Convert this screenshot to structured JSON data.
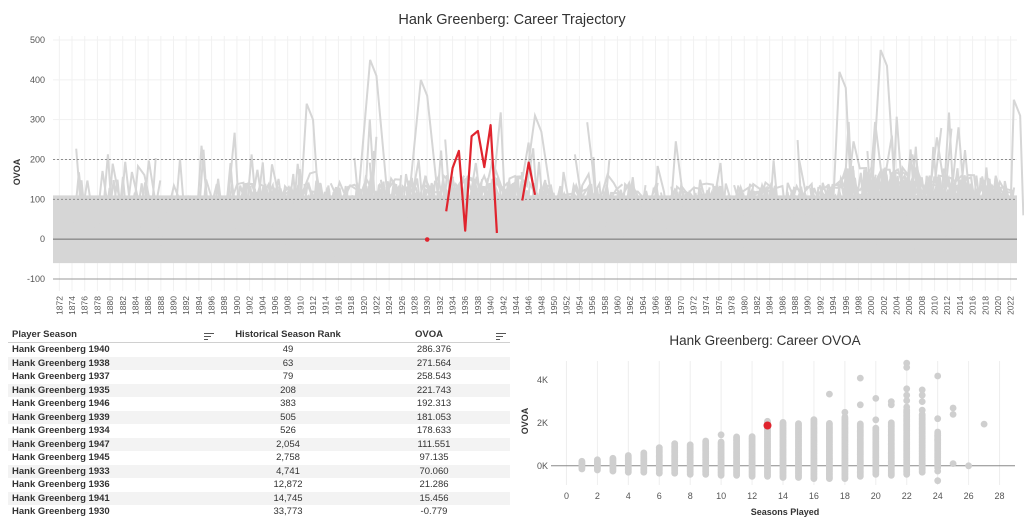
{
  "top_chart": {
    "title": "Hank Greenberg: Career Trajectory"
  },
  "scatter_chart": {
    "title": "Hank Greenberg: Career OVOA"
  },
  "table": {
    "headers": [
      "Player Season",
      "Historical Season Rank",
      "OVOA"
    ],
    "rows": [
      [
        "Hank Greenberg 1940",
        "49",
        "286.376"
      ],
      [
        "Hank Greenberg 1938",
        "63",
        "271.564"
      ],
      [
        "Hank Greenberg 1937",
        "79",
        "258.543"
      ],
      [
        "Hank Greenberg 1935",
        "208",
        "221.743"
      ],
      [
        "Hank Greenberg 1946",
        "383",
        "192.313"
      ],
      [
        "Hank Greenberg 1939",
        "505",
        "181.053"
      ],
      [
        "Hank Greenberg 1934",
        "526",
        "178.633"
      ],
      [
        "Hank Greenberg 1947",
        "2,054",
        "111.551"
      ],
      [
        "Hank Greenberg 1945",
        "2,758",
        "97.135"
      ],
      [
        "Hank Greenberg 1933",
        "4,741",
        "70.060"
      ],
      [
        "Hank Greenberg 1936",
        "12,872",
        "21.286"
      ],
      [
        "Hank Greenberg 1941",
        "14,745",
        "15.456"
      ],
      [
        "Hank Greenberg 1930",
        "33,773",
        "-0.779"
      ]
    ]
  },
  "colors": {
    "highlight": "#e0242e",
    "background_lines": "#d6d6d6",
    "background_points": "#cfcfcf",
    "zero_line": "#8a8a8a"
  },
  "chart_data": [
    {
      "type": "line",
      "title": "Hank Greenberg: Career Trajectory",
      "xlabel": "",
      "ylabel": "OVOA",
      "xlim": [
        1871,
        2023
      ],
      "ylim": [
        -130,
        510
      ],
      "yticks": [
        -100,
        0,
        100,
        200,
        300,
        400,
        500
      ],
      "xticks": [
        1872,
        1874,
        1876,
        1878,
        1880,
        1882,
        1884,
        1886,
        1888,
        1890,
        1892,
        1894,
        1896,
        1898,
        1900,
        1902,
        1904,
        1906,
        1908,
        1910,
        1912,
        1914,
        1916,
        1918,
        1920,
        1922,
        1924,
        1926,
        1928,
        1930,
        1932,
        1934,
        1936,
        1938,
        1940,
        1942,
        1944,
        1946,
        1948,
        1950,
        1952,
        1954,
        1956,
        1958,
        1960,
        1962,
        1964,
        1966,
        1968,
        1970,
        1972,
        1974,
        1976,
        1978,
        1980,
        1982,
        1984,
        1986,
        1988,
        1990,
        1992,
        1994,
        1996,
        1998,
        2000,
        2002,
        2004,
        2006,
        2008,
        2010,
        2012,
        2014,
        2016,
        2018,
        2020,
        2022
      ],
      "reference_lines": [
        -100,
        0,
        100,
        200
      ],
      "background": "all other player careers (grey)",
      "series": [
        {
          "name": "Hank Greenberg",
          "segments": [
            [
              {
                "x": 1930,
                "y": -0.779
              }
            ],
            [
              {
                "x": 1933,
                "y": 70.06
              },
              {
                "x": 1934,
                "y": 178.633
              },
              {
                "x": 1935,
                "y": 221.743
              },
              {
                "x": 1936,
                "y": 21.286
              },
              {
                "x": 1937,
                "y": 258.543
              },
              {
                "x": 1938,
                "y": 271.564
              },
              {
                "x": 1939,
                "y": 181.053
              },
              {
                "x": 1940,
                "y": 286.376
              },
              {
                "x": 1941,
                "y": 15.456
              }
            ],
            [
              {
                "x": 1945,
                "y": 97.135
              },
              {
                "x": 1946,
                "y": 192.313
              },
              {
                "x": 1947,
                "y": 111.551
              }
            ]
          ]
        }
      ]
    },
    {
      "type": "scatter",
      "title": "Hank Greenberg: Career OVOA",
      "xlabel": "Seasons Played",
      "ylabel": "OVOA",
      "xlim": [
        -1,
        29
      ],
      "ylim": [
        -900,
        4900
      ],
      "xticks": [
        0,
        2,
        4,
        6,
        8,
        10,
        12,
        14,
        16,
        18,
        20,
        22,
        24,
        26,
        28
      ],
      "yticks": [
        0,
        2000,
        4000
      ],
      "ytick_labels": [
        "0K",
        "2K",
        "4K"
      ],
      "highlight": {
        "name": "Hank Greenberg",
        "x": 13,
        "y": 1884
      },
      "columns": [
        {
          "x": 1,
          "min": -150,
          "max": 250
        },
        {
          "x": 2,
          "min": -200,
          "max": 300
        },
        {
          "x": 3,
          "min": -250,
          "max": 400
        },
        {
          "x": 4,
          "min": -300,
          "max": 500
        },
        {
          "x": 5,
          "min": -300,
          "max": 600
        },
        {
          "x": 6,
          "min": -350,
          "max": 850
        },
        {
          "x": 7,
          "min": -350,
          "max": 1050
        },
        {
          "x": 8,
          "min": -400,
          "max": 1000
        },
        {
          "x": 9,
          "min": -400,
          "max": 1200
        },
        {
          "x": 10,
          "min": -450,
          "max": 1150
        },
        {
          "x": 11,
          "min": -450,
          "max": 1300
        },
        {
          "x": 12,
          "min": -500,
          "max": 1400
        },
        {
          "x": 13,
          "min": -500,
          "max": 2100
        },
        {
          "x": 14,
          "min": -550,
          "max": 2050
        },
        {
          "x": 15,
          "min": -550,
          "max": 2000
        },
        {
          "x": 16,
          "min": -600,
          "max": 2200
        },
        {
          "x": 17,
          "min": -600,
          "max": 2000
        },
        {
          "x": 18,
          "min": -600,
          "max": 2300
        },
        {
          "x": 19,
          "min": -500,
          "max": 2000
        },
        {
          "x": 20,
          "min": -400,
          "max": 1800
        },
        {
          "x": 21,
          "min": -450,
          "max": 2050
        },
        {
          "x": 22,
          "min": -400,
          "max": 2600
        },
        {
          "x": 23,
          "min": -300,
          "max": 2400
        },
        {
          "x": 24,
          "min": -100,
          "max": 1600
        }
      ],
      "outliers": [
        {
          "x": 10,
          "y": 1450
        },
        {
          "x": 11,
          "y": 1350
        },
        {
          "x": 17,
          "y": 3350
        },
        {
          "x": 18,
          "y": 2500
        },
        {
          "x": 19,
          "y": 4100
        },
        {
          "x": 19,
          "y": 2850
        },
        {
          "x": 20,
          "y": 3150
        },
        {
          "x": 20,
          "y": 2150
        },
        {
          "x": 21,
          "y": 3000
        },
        {
          "x": 21,
          "y": 2850
        },
        {
          "x": 22,
          "y": 4800
        },
        {
          "x": 22,
          "y": 4600
        },
        {
          "x": 22,
          "y": 3600
        },
        {
          "x": 22,
          "y": 3300
        },
        {
          "x": 22,
          "y": 3050
        },
        {
          "x": 22,
          "y": 2750
        },
        {
          "x": 23,
          "y": 3550
        },
        {
          "x": 23,
          "y": 3300
        },
        {
          "x": 23,
          "y": 3000
        },
        {
          "x": 23,
          "y": 2600
        },
        {
          "x": 24,
          "y": 4200
        },
        {
          "x": 24,
          "y": 2200
        },
        {
          "x": 24,
          "y": 1400
        },
        {
          "x": 24,
          "y": 1200
        },
        {
          "x": 24,
          "y": -250
        },
        {
          "x": 24,
          "y": -700
        },
        {
          "x": 25,
          "y": 2700
        },
        {
          "x": 25,
          "y": 2400
        },
        {
          "x": 25,
          "y": 100
        },
        {
          "x": 26,
          "y": 0
        },
        {
          "x": 27,
          "y": 1950
        }
      ]
    }
  ]
}
